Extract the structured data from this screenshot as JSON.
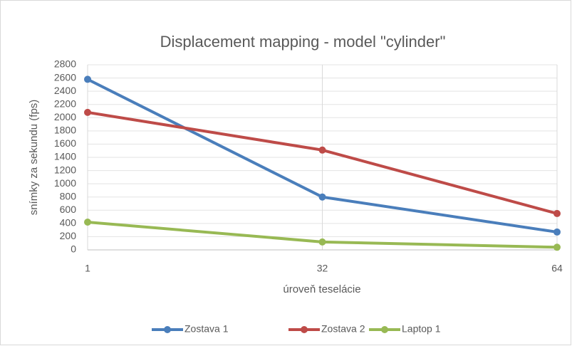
{
  "chart_data": {
    "type": "line",
    "title": "Displacement mapping - model \"cylinder\"",
    "x_label": "úroveň teselácie",
    "y_label": "snímky za sekundu (fps)",
    "categories": [
      "1",
      "32",
      "64"
    ],
    "series": [
      {
        "name": "Zostava 1",
        "color": "#4a7ebb",
        "values": [
          2580,
          800,
          270
        ]
      },
      {
        "name": "Zostava 2",
        "color": "#be4b48",
        "values": [
          2080,
          1510,
          550
        ]
      },
      {
        "name": "Laptop 1",
        "color": "#98b954",
        "values": [
          420,
          120,
          40
        ]
      }
    ],
    "ylim": [
      0,
      2800
    ],
    "yticks": [
      0,
      200,
      400,
      600,
      800,
      1000,
      1200,
      1400,
      1600,
      1800,
      2000,
      2200,
      2400,
      2600,
      2800
    ],
    "grid": true,
    "legend": "bottom"
  }
}
